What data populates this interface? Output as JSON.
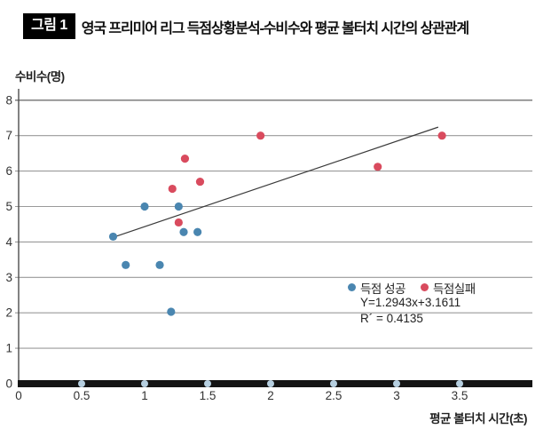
{
  "figure": {
    "label": "그림 1",
    "title": "영국 프리미어 리그 득점상황분석-수비수와 평균 볼터치 시간의 상관관계"
  },
  "chart_data": {
    "type": "scatter",
    "title": "영국 프리미어 리그 득점상황분석-수비수와 평균 볼터치 시간의 상관관계",
    "xlabel": "평균 볼터치 시간(초)",
    "ylabel": "수비수(명)",
    "xlim": [
      0,
      4.08
    ],
    "ylim": [
      0,
      8
    ],
    "yticks": [
      0,
      1,
      2,
      3,
      4,
      5,
      6,
      7,
      8
    ],
    "xticks": [
      0,
      0.5,
      1,
      1.5,
      2,
      2.5,
      3,
      3.5
    ],
    "grid": "horizontal",
    "series": [
      {
        "name": "득점 성공",
        "color": "#4a86b0",
        "points": [
          [
            0.75,
            4.15
          ],
          [
            0.85,
            3.35
          ],
          [
            1.0,
            5.0
          ],
          [
            1.12,
            3.35
          ],
          [
            1.21,
            2.03
          ],
          [
            1.27,
            5.0
          ],
          [
            1.31,
            4.28
          ],
          [
            1.42,
            4.28
          ]
        ]
      },
      {
        "name": "득점실패",
        "color": "#d94b5e",
        "points": [
          [
            1.22,
            5.5
          ],
          [
            1.27,
            4.55
          ],
          [
            1.32,
            6.35
          ],
          [
            1.44,
            5.7
          ],
          [
            1.92,
            7.0
          ],
          [
            2.85,
            6.12
          ],
          [
            3.36,
            7.0
          ]
        ]
      }
    ],
    "axis_markers": {
      "color": "#b6cfe0",
      "y": 0,
      "x": [
        0.5,
        1,
        1.5,
        2,
        2.5,
        3,
        3.5
      ]
    },
    "trendline": {
      "x1": 0.75,
      "y1": 4.13,
      "x2": 3.33,
      "y2": 7.24,
      "color": "#3a3a3a"
    },
    "equation": "Y=1.2943x+3.1611",
    "r_squared": "R´ = 0.4135",
    "legend": [
      {
        "label": "득점 성공",
        "color": "#4a86b0"
      },
      {
        "label": "득점실패",
        "color": "#d94b5e"
      }
    ],
    "colors": {
      "gridline": "#9a9a9a",
      "axis_bar": "#141414",
      "tick_text": "#333333"
    }
  }
}
